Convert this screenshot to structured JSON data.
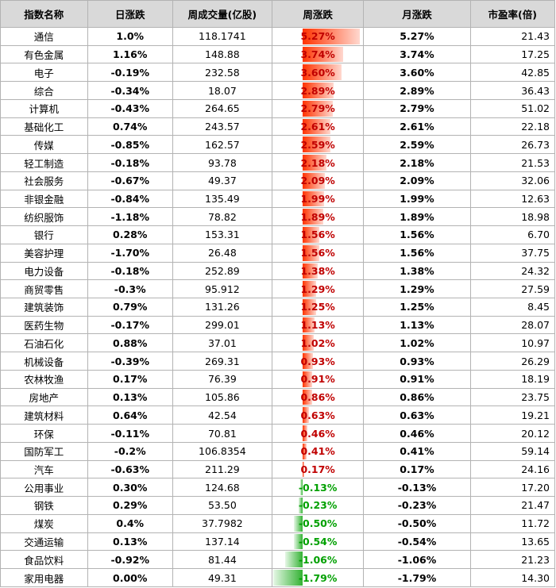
{
  "headers": [
    "指数名称",
    "日涨跌",
    "周成交量(亿股)",
    "周涨跌",
    "月涨跌",
    "市盈率(倍)"
  ],
  "bar_scale_max_abs": 5.27,
  "colors": {
    "up": "#c00000",
    "down": "#00a000",
    "bar_pos": "#ff3300",
    "bar_neg": "#33b233",
    "header_bg": "#d9d9d9"
  },
  "rows": [
    {
      "name": "通信",
      "day": "1.0%",
      "day_dir": "up",
      "volume": "118.1741",
      "week": "5.27%",
      "week_value": 5.27,
      "month": "5.27%",
      "month_dir": "up",
      "pe": "21.43"
    },
    {
      "name": "有色金属",
      "day": "1.16%",
      "day_dir": "up",
      "volume": "148.88",
      "week": "3.74%",
      "week_value": 3.74,
      "month": "3.74%",
      "month_dir": "up",
      "pe": "17.25"
    },
    {
      "name": "电子",
      "day": "-0.19%",
      "day_dir": "down",
      "volume": "232.58",
      "week": "3.60%",
      "week_value": 3.6,
      "month": "3.60%",
      "month_dir": "up",
      "pe": "42.85"
    },
    {
      "name": "综合",
      "day": "-0.34%",
      "day_dir": "down",
      "volume": "18.07",
      "week": "2.89%",
      "week_value": 2.89,
      "month": "2.89%",
      "month_dir": "up",
      "pe": "36.43"
    },
    {
      "name": "计算机",
      "day": "-0.43%",
      "day_dir": "down",
      "volume": "264.65",
      "week": "2.79%",
      "week_value": 2.79,
      "month": "2.79%",
      "month_dir": "up",
      "pe": "51.02"
    },
    {
      "name": "基础化工",
      "day": "0.74%",
      "day_dir": "up",
      "volume": "243.57",
      "week": "2.61%",
      "week_value": 2.61,
      "month": "2.61%",
      "month_dir": "up",
      "pe": "22.18"
    },
    {
      "name": "传媒",
      "day": "-0.85%",
      "day_dir": "down",
      "volume": "162.57",
      "week": "2.59%",
      "week_value": 2.59,
      "month": "2.59%",
      "month_dir": "up",
      "pe": "26.73"
    },
    {
      "name": "轻工制造",
      "day": "-0.18%",
      "day_dir": "down",
      "volume": "93.78",
      "week": "2.18%",
      "week_value": 2.18,
      "month": "2.18%",
      "month_dir": "up",
      "pe": "21.53"
    },
    {
      "name": "社会服务",
      "day": "-0.67%",
      "day_dir": "down",
      "volume": "49.37",
      "week": "2.09%",
      "week_value": 2.09,
      "month": "2.09%",
      "month_dir": "up",
      "pe": "32.06"
    },
    {
      "name": "非银金融",
      "day": "-0.84%",
      "day_dir": "down",
      "volume": "135.49",
      "week": "1.99%",
      "week_value": 1.99,
      "month": "1.99%",
      "month_dir": "up",
      "pe": "12.63"
    },
    {
      "name": "纺织服饰",
      "day": "-1.18%",
      "day_dir": "down",
      "volume": "78.82",
      "week": "1.89%",
      "week_value": 1.89,
      "month": "1.89%",
      "month_dir": "up",
      "pe": "18.98"
    },
    {
      "name": "银行",
      "day": "0.28%",
      "day_dir": "up",
      "volume": "153.31",
      "week": "1.56%",
      "week_value": 1.56,
      "month": "1.56%",
      "month_dir": "up",
      "pe": "6.70"
    },
    {
      "name": "美容护理",
      "day": "-1.70%",
      "day_dir": "down",
      "volume": "26.48",
      "week": "1.56%",
      "week_value": 1.56,
      "month": "1.56%",
      "month_dir": "up",
      "pe": "37.75"
    },
    {
      "name": "电力设备",
      "day": "-0.18%",
      "day_dir": "down",
      "volume": "252.89",
      "week": "1.38%",
      "week_value": 1.38,
      "month": "1.38%",
      "month_dir": "up",
      "pe": "24.32"
    },
    {
      "name": "商贸零售",
      "day": "-0.3%",
      "day_dir": "down",
      "volume": "95.912",
      "week": "1.29%",
      "week_value": 1.29,
      "month": "1.29%",
      "month_dir": "up",
      "pe": "27.59"
    },
    {
      "name": "建筑装饰",
      "day": "0.79%",
      "day_dir": "up",
      "volume": "131.26",
      "week": "1.25%",
      "week_value": 1.25,
      "month": "1.25%",
      "month_dir": "up",
      "pe": "8.45"
    },
    {
      "name": "医药生物",
      "day": "-0.17%",
      "day_dir": "down",
      "volume": "299.01",
      "week": "1.13%",
      "week_value": 1.13,
      "month": "1.13%",
      "month_dir": "up",
      "pe": "28.07"
    },
    {
      "name": "石油石化",
      "day": "0.88%",
      "day_dir": "up",
      "volume": "37.01",
      "week": "1.02%",
      "week_value": 1.02,
      "month": "1.02%",
      "month_dir": "up",
      "pe": "10.97"
    },
    {
      "name": "机械设备",
      "day": "-0.39%",
      "day_dir": "down",
      "volume": "269.31",
      "week": "0.93%",
      "week_value": 0.93,
      "month": "0.93%",
      "month_dir": "up",
      "pe": "26.29"
    },
    {
      "name": "农林牧渔",
      "day": "0.17%",
      "day_dir": "up",
      "volume": "76.39",
      "week": "0.91%",
      "week_value": 0.91,
      "month": "0.91%",
      "month_dir": "up",
      "pe": "18.19"
    },
    {
      "name": "房地产",
      "day": "0.13%",
      "day_dir": "up",
      "volume": "105.86",
      "week": "0.86%",
      "week_value": 0.86,
      "month": "0.86%",
      "month_dir": "up",
      "pe": "23.75"
    },
    {
      "name": "建筑材料",
      "day": "0.64%",
      "day_dir": "up",
      "volume": "42.54",
      "week": "0.63%",
      "week_value": 0.63,
      "month": "0.63%",
      "month_dir": "up",
      "pe": "19.21"
    },
    {
      "name": "环保",
      "day": "-0.11%",
      "day_dir": "down",
      "volume": "70.81",
      "week": "0.46%",
      "week_value": 0.46,
      "month": "0.46%",
      "month_dir": "up",
      "pe": "20.12"
    },
    {
      "name": "国防军工",
      "day": "-0.2%",
      "day_dir": "down",
      "volume": "106.8354",
      "week": "0.41%",
      "week_value": 0.41,
      "month": "0.41%",
      "month_dir": "up",
      "pe": "59.14"
    },
    {
      "name": "汽车",
      "day": "-0.63%",
      "day_dir": "down",
      "volume": "211.29",
      "week": "0.17%",
      "week_value": 0.17,
      "month": "0.17%",
      "month_dir": "up",
      "pe": "24.16"
    },
    {
      "name": "公用事业",
      "day": "0.30%",
      "day_dir": "up",
      "volume": "124.68",
      "week": "-0.13%",
      "week_value": -0.13,
      "month": "-0.13%",
      "month_dir": "down",
      "pe": "17.20"
    },
    {
      "name": "钢铁",
      "day": "0.29%",
      "day_dir": "up",
      "volume": "53.50",
      "week": "-0.23%",
      "week_value": -0.23,
      "month": "-0.23%",
      "month_dir": "down",
      "pe": "21.47"
    },
    {
      "name": "煤炭",
      "day": "0.4%",
      "day_dir": "up",
      "volume": "37.7982",
      "week": "-0.50%",
      "week_value": -0.5,
      "month": "-0.50%",
      "month_dir": "down",
      "pe": "11.72"
    },
    {
      "name": "交通运输",
      "day": "0.13%",
      "day_dir": "up",
      "volume": "137.14",
      "week": "-0.54%",
      "week_value": -0.54,
      "month": "-0.54%",
      "month_dir": "down",
      "pe": "13.65"
    },
    {
      "name": "食品饮料",
      "day": "-0.92%",
      "day_dir": "down",
      "volume": "81.44",
      "week": "-1.06%",
      "week_value": -1.06,
      "month": "-1.06%",
      "month_dir": "down",
      "pe": "21.23"
    },
    {
      "name": "家用电器",
      "day": "0.00%",
      "day_dir": "flat",
      "volume": "49.31",
      "week": "-1.79%",
      "week_value": -1.79,
      "month": "-1.79%",
      "month_dir": "down",
      "pe": "14.30"
    }
  ]
}
